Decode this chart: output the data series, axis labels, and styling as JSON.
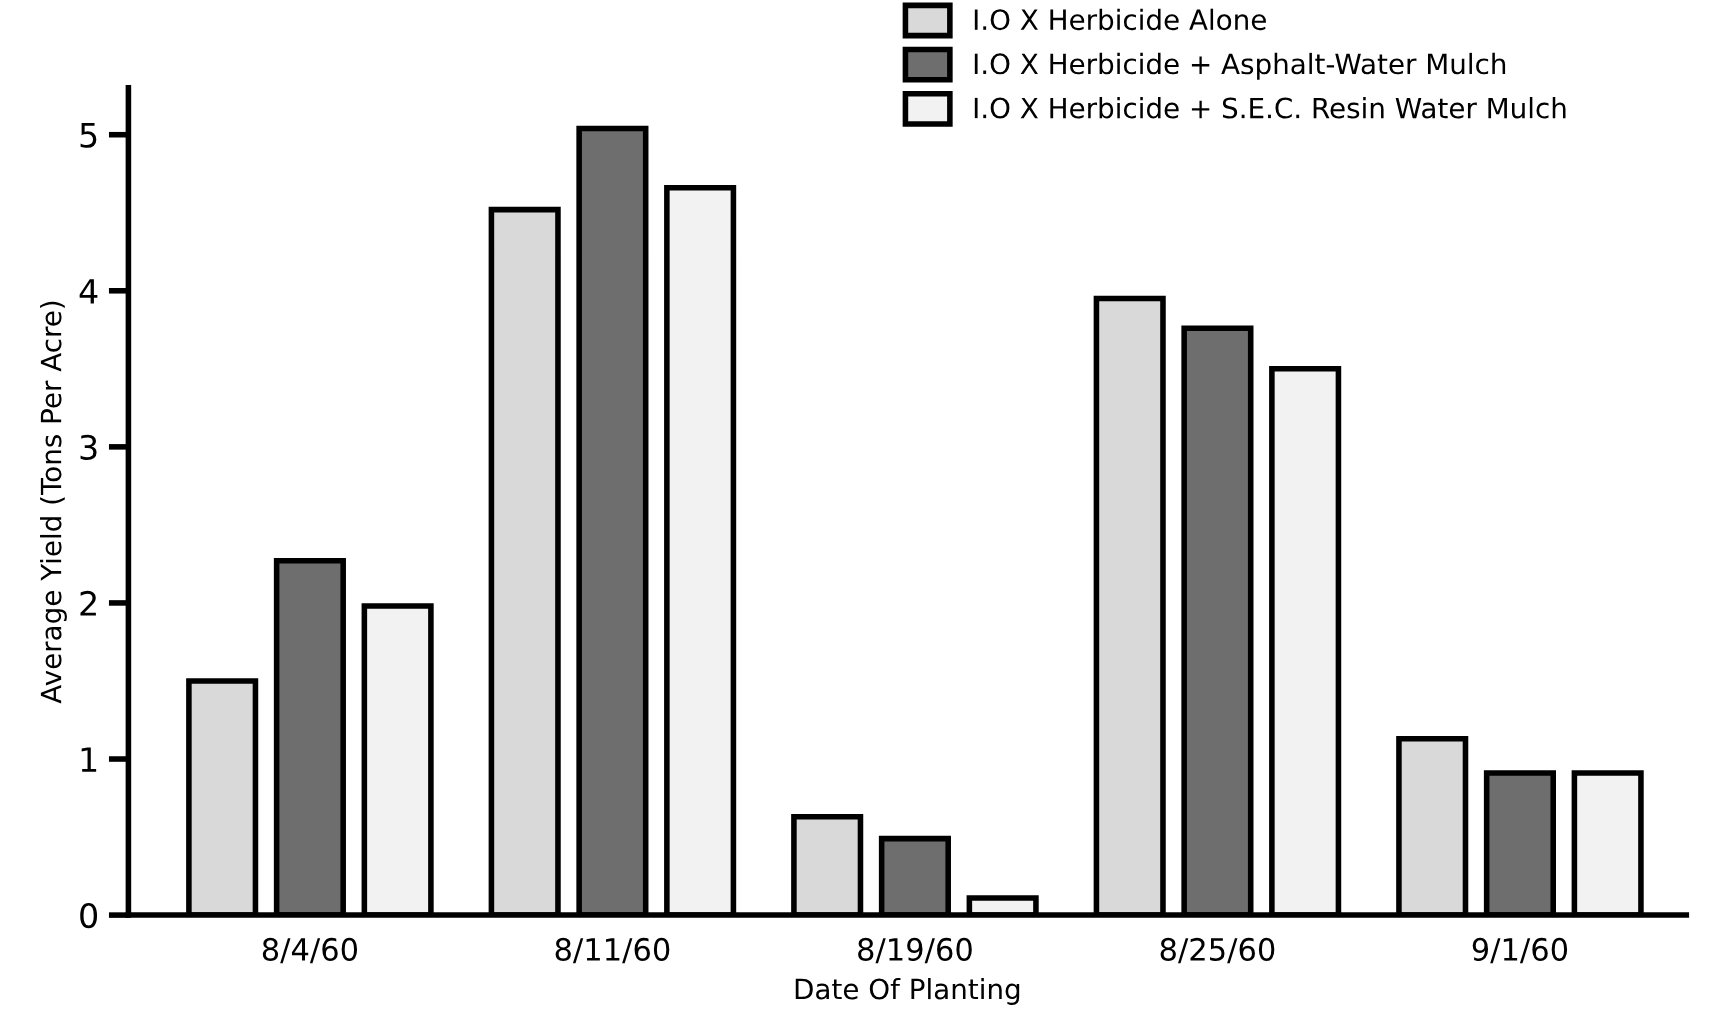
{
  "chart_data": {
    "type": "bar",
    "xlabel": "Date Of Planting",
    "ylabel": "Average Yield (Tons Per Acre)",
    "categories": [
      "8/4/60",
      "8/11/60",
      "8/19/60",
      "8/25/60",
      "9/1/60"
    ],
    "series": [
      {
        "name": "I.O X Herbicide Alone",
        "color": "#d9d9d9",
        "values": [
          1.5,
          4.52,
          0.63,
          3.95,
          1.13
        ]
      },
      {
        "name": "I.O X Herbicide + Asphalt-Water Mulch",
        "color": "#6e6e6e",
        "values": [
          2.27,
          5.04,
          0.49,
          3.76,
          0.91
        ]
      },
      {
        "name": "I.O X Herbicide + S.E.C. Resin Water Mulch",
        "color": "#f2f2f2",
        "values": [
          1.98,
          4.66,
          0.11,
          3.5,
          0.91
        ]
      }
    ],
    "ylim": [
      0,
      5.3
    ],
    "yticks": [
      0,
      1,
      2,
      3,
      4,
      5
    ],
    "grid": false,
    "legend": "top right"
  }
}
